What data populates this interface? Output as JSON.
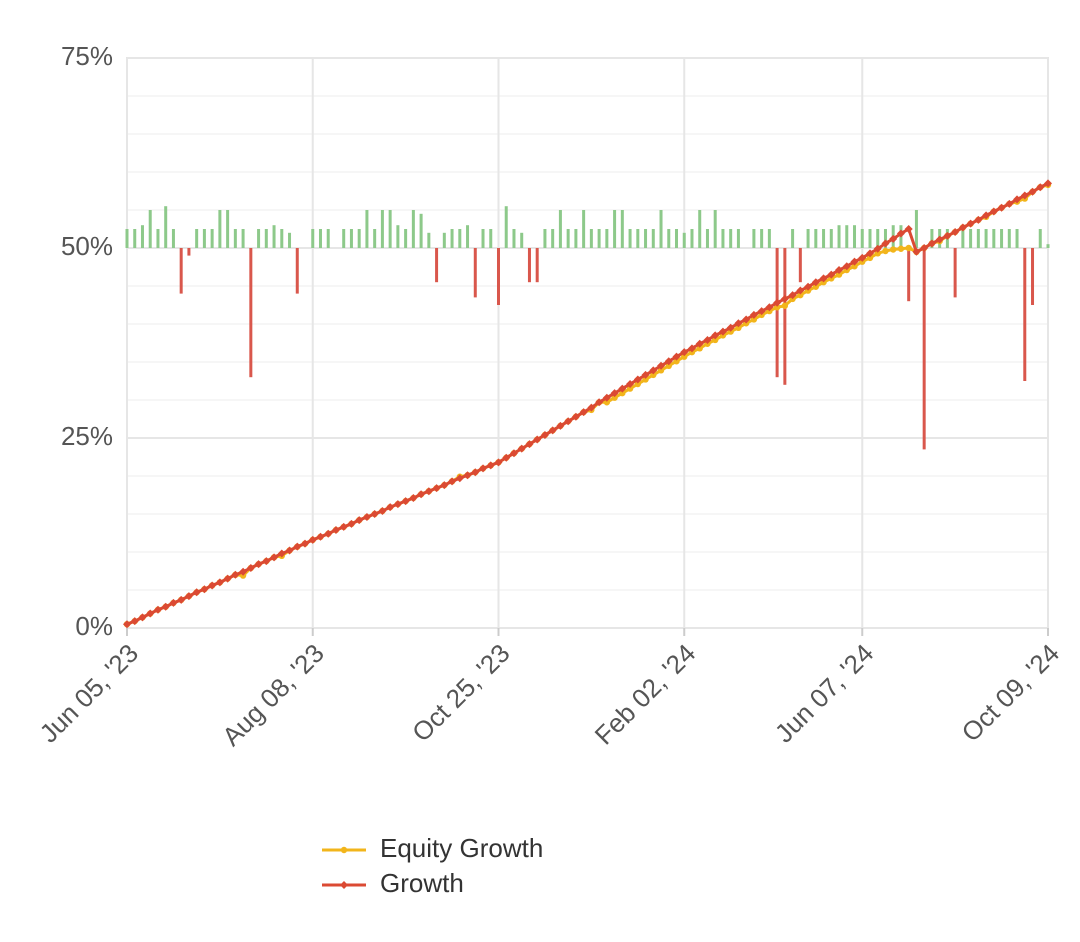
{
  "chart_data": {
    "type": "line",
    "ylim": [
      0,
      75
    ],
    "yticks": [
      {
        "value": 0,
        "label": "0%"
      },
      {
        "value": 25,
        "label": "25%"
      },
      {
        "value": 50,
        "label": "50%"
      },
      {
        "value": 75,
        "label": "75%"
      }
    ],
    "yticks_minor": [
      5,
      10,
      15,
      20,
      30,
      35,
      40,
      45,
      55,
      60,
      65,
      70
    ],
    "y2lim": [
      -10,
      5
    ],
    "xlim": [
      0,
      119
    ],
    "xticks": [
      {
        "value": 0,
        "label": "Jun 05, '23"
      },
      {
        "value": 24,
        "label": "Aug 08, '23"
      },
      {
        "value": 48,
        "label": "Oct 25, '23"
      },
      {
        "value": 72,
        "label": "Feb 02, '24"
      },
      {
        "value": 95,
        "label": "Jun 07, '24"
      },
      {
        "value": 119,
        "label": "Oct 09, '24"
      }
    ],
    "grid": true,
    "legend": "bottom",
    "series": [
      {
        "name": "Equity Growth",
        "color": "#f2b51b",
        "marker": "circle",
        "values": [
          0.5,
          0.9,
          1.4,
          1.9,
          2.4,
          2.8,
          3.3,
          3.7,
          4.2,
          4.7,
          5.1,
          5.6,
          6.0,
          6.5,
          7.0,
          6.9,
          7.9,
          8.4,
          8.8,
          9.3,
          9.5,
          10.2,
          10.7,
          11.1,
          11.6,
          12.0,
          12.4,
          12.9,
          13.3,
          13.7,
          14.2,
          14.6,
          15.0,
          15.4,
          15.9,
          16.3,
          16.7,
          17.1,
          17.6,
          18.0,
          18.4,
          18.8,
          19.3,
          19.9,
          20.1,
          20.5,
          21.0,
          21.4,
          21.8,
          22.4,
          23.0,
          23.6,
          24.2,
          24.8,
          25.4,
          26.0,
          26.6,
          27.2,
          27.8,
          28.4,
          28.7,
          29.7,
          29.7,
          30.3,
          30.9,
          31.5,
          32.1,
          32.7,
          33.3,
          33.9,
          34.5,
          35.1,
          35.7,
          36.3,
          36.8,
          37.4,
          37.9,
          38.5,
          39.0,
          39.5,
          40.1,
          40.6,
          41.2,
          41.7,
          42.2,
          42.4,
          43.3,
          43.8,
          44.4,
          44.9,
          45.5,
          46.0,
          46.5,
          47.1,
          47.6,
          48.2,
          48.7,
          49.3,
          49.6,
          49.8,
          49.9,
          50.0,
          49.5,
          50.0,
          50.6,
          50.9,
          51.6,
          52.1,
          52.7,
          53.2,
          53.7,
          54.1,
          54.8,
          55.3,
          55.8,
          56.1,
          56.5,
          57.4,
          58.0,
          58.3
        ]
      },
      {
        "name": "Growth",
        "color": "#db4a33",
        "marker": "diamond",
        "values": [
          0.5,
          0.9,
          1.4,
          1.9,
          2.4,
          2.8,
          3.3,
          3.7,
          4.2,
          4.7,
          5.1,
          5.6,
          6.0,
          6.5,
          7.0,
          7.4,
          7.9,
          8.4,
          8.8,
          9.3,
          9.8,
          10.2,
          10.7,
          11.1,
          11.6,
          12.0,
          12.4,
          12.9,
          13.3,
          13.7,
          14.2,
          14.6,
          15.0,
          15.4,
          15.9,
          16.3,
          16.7,
          17.1,
          17.6,
          18.0,
          18.4,
          18.8,
          19.3,
          19.7,
          20.1,
          20.5,
          21.0,
          21.4,
          21.8,
          22.4,
          23.0,
          23.6,
          24.2,
          24.8,
          25.4,
          26.0,
          26.6,
          27.2,
          27.8,
          28.4,
          29.0,
          29.7,
          30.3,
          30.9,
          31.5,
          32.1,
          32.7,
          33.3,
          33.9,
          34.5,
          35.1,
          35.7,
          36.3,
          36.8,
          37.4,
          37.9,
          38.5,
          39.0,
          39.5,
          40.1,
          40.6,
          41.2,
          41.7,
          42.2,
          42.8,
          43.3,
          43.8,
          44.4,
          44.9,
          45.5,
          46.0,
          46.5,
          47.1,
          47.6,
          48.2,
          48.7,
          49.3,
          49.9,
          50.6,
          51.2,
          51.9,
          52.5,
          49.5,
          50.0,
          50.6,
          51.1,
          51.6,
          52.1,
          52.7,
          53.2,
          53.7,
          54.3,
          54.8,
          55.3,
          55.8,
          56.4,
          56.9,
          57.4,
          58.0,
          58.5
        ]
      }
    ],
    "bars": {
      "axis": "y2",
      "positive_color": "#8dc98a",
      "negative_color": "#d9574c",
      "values": [
        0.5,
        0.5,
        0.6,
        1.0,
        0.5,
        1.1,
        0.5,
        -1.2,
        -0.2,
        0.5,
        0.5,
        0.5,
        1.0,
        1.0,
        0.5,
        0.5,
        -3.4,
        0.5,
        0.5,
        0.6,
        0.5,
        0.4,
        -1.2,
        0,
        0.5,
        0.5,
        0.5,
        0,
        0.5,
        0.5,
        0.5,
        1.0,
        0.5,
        1.0,
        1.0,
        0.6,
        0.5,
        1.0,
        0.9,
        0.4,
        -0.9,
        0.4,
        0.5,
        0.5,
        0.6,
        -1.3,
        0.5,
        0.5,
        -1.5,
        1.1,
        0.5,
        0.4,
        -0.9,
        -0.9,
        0.5,
        0.5,
        1.0,
        0.5,
        0.5,
        1.0,
        0.5,
        0.5,
        0.5,
        1.0,
        1.0,
        0.5,
        0.5,
        0.5,
        0.5,
        1.0,
        0.5,
        0.5,
        0.4,
        0.5,
        1.0,
        0.5,
        1.0,
        0.5,
        0.5,
        0.5,
        0,
        0.5,
        0.5,
        0.5,
        -3.4,
        -3.6,
        0.5,
        -0.9,
        0.5,
        0.5,
        0.5,
        0.5,
        0.6,
        0.6,
        0.6,
        0.5,
        0.5,
        0.5,
        0.5,
        0.6,
        0.6,
        -1.4,
        1.0,
        -5.3,
        0.5,
        0.5,
        0.5,
        -1.3,
        0.5,
        0.5,
        0.5,
        0.5,
        0.5,
        0.5,
        0.5,
        0.5,
        -3.5,
        -1.5,
        0.5,
        0.1
      ]
    }
  }
}
